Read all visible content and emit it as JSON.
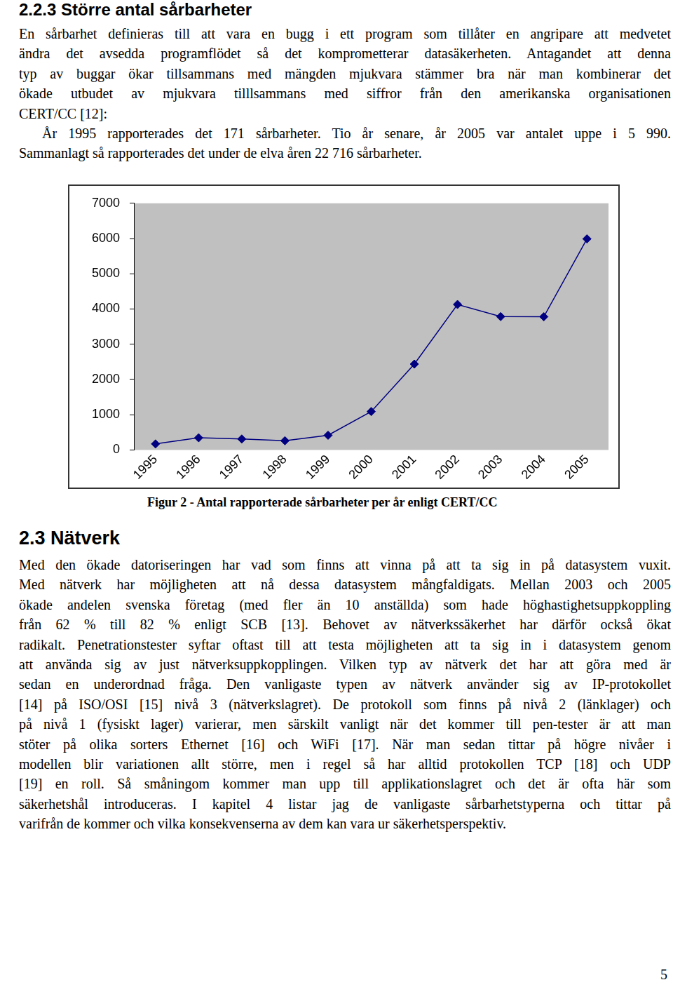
{
  "section_1": {
    "heading": "2.2.3 Större antal sårbarheter",
    "paragraph": [
      "En sårbarhet definieras till att vara en bugg i ett program som tillåter en angripare att medvetet",
      "ändra det avsedda programflödet så det komprometterar datasäkerheten. Antagandet att denna",
      "typ av buggar ökar tillsammans med mängden mjukvara stämmer bra när man kombinerar det",
      "ökade utbudet av mjukvara tilllsammans med siffror från den amerikanska organisationen",
      "CERT/CC [12]:"
    ],
    "quote": [
      "År 1995 rapporterades det 171 sårbarheter. Tio år senare, år 2005 var antalet uppe i 5 990.",
      "Sammanlagt så rapporterades det under de elva åren 22 716 sårbarheter."
    ]
  },
  "chart_data": {
    "type": "line",
    "categories": [
      "1995",
      "1996",
      "1997",
      "1998",
      "1999",
      "2000",
      "2001",
      "2002",
      "2003",
      "2004",
      "2005"
    ],
    "values": [
      171,
      345,
      311,
      262,
      417,
      1090,
      2437,
      4129,
      3784,
      3780,
      5990
    ],
    "color": "#000080",
    "marker": "diamond",
    "ylim": [
      0,
      7000
    ],
    "yticks": [
      0,
      1000,
      2000,
      3000,
      4000,
      5000,
      6000,
      7000
    ],
    "grid": false
  },
  "figure_caption": "Figur 2 - Antal rapporterade sårbarheter per år enligt CERT/CC",
  "section_2": {
    "heading": "2.3 Nätverk",
    "paragraph": [
      "Med den ökade datoriseringen har vad som finns att vinna på att ta sig in på datasystem vuxit.",
      "Med nätverk har möjligheten att nå dessa datasystem mångfaldigats. Mellan 2003 och 2005",
      "ökade andelen svenska företag (med fler än 10 anställda) som hade höghastighetsuppkoppling",
      "från 62 % till 82 % enligt SCB [13]. Behovet av nätverkssäkerhet har därför också ökat",
      "radikalt. Penetrationstester syftar oftast till att testa möjligheten att ta sig in i datasystem genom",
      "att använda sig av just nätverksuppkopplingen. Vilken typ av nätverk det har att göra med är",
      "sedan en underordnad fråga. Den vanligaste typen av nätverk använder sig av IP-protokollet",
      "[14] på ISO/OSI [15] nivå 3 (nätverkslagret). De protokoll som finns på nivå 2 (länklager) och",
      "på nivå 1 (fysiskt lager) varierar, men särskilt vanligt när det kommer till pen-tester är att man",
      "stöter på olika sorters Ethernet [16] och WiFi [17]. När man sedan tittar på högre nivåer i",
      "modellen blir variationen allt större, men i regel så har alltid protokollen TCP [18] och UDP",
      "[19] en roll. Så småningom kommer man upp till applikationslagret och det är ofta här som",
      "säkerhetshål introduceras. I kapitel 4 listar jag de vanligaste sårbarhetstyperna och tittar på",
      "varifrån de kommer och vilka konsekvenserna av dem kan vara ur säkerhetsperspektiv."
    ]
  },
  "page_number": "5"
}
